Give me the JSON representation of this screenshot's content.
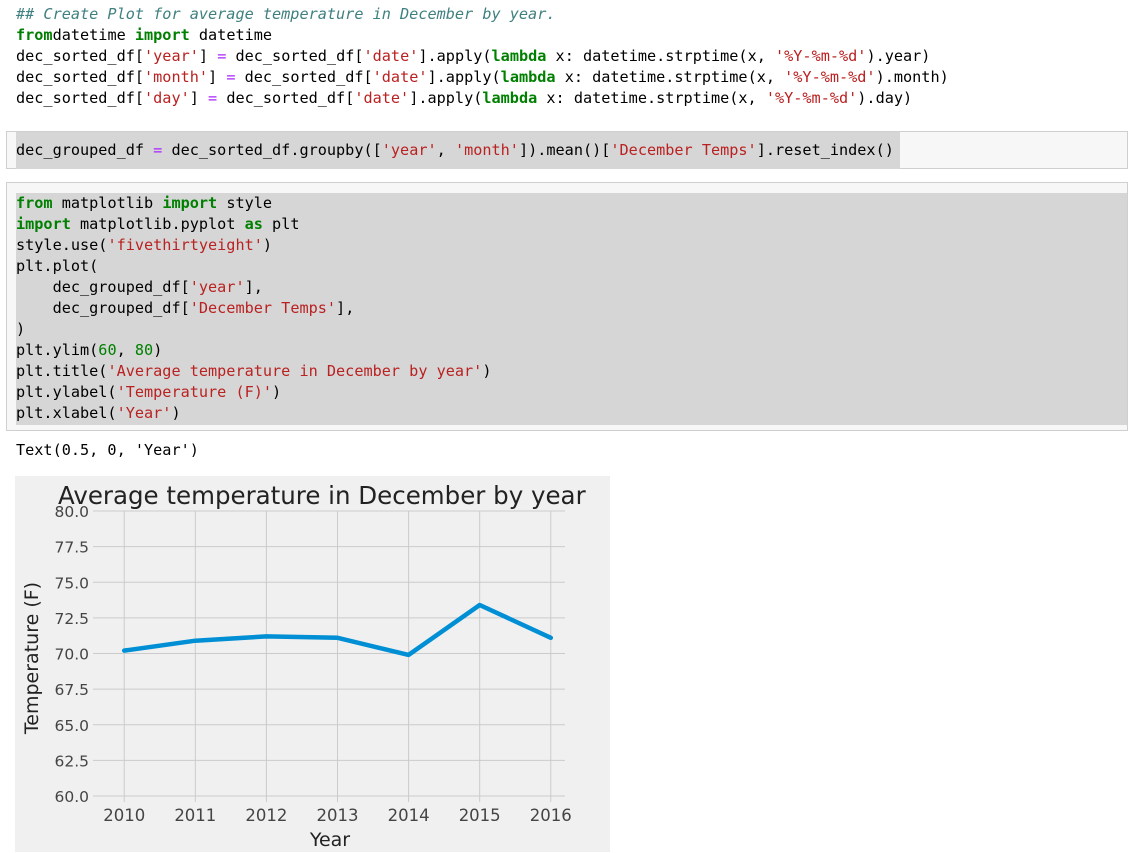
{
  "cell1": {
    "lines": [
      [
        [
          "cm",
          "## Create Plot for average temperature in December by year."
        ]
      ],
      [
        [
          "kw",
          "from"
        ],
        [
          "",
          "datetime "
        ],
        [
          "kw",
          "import"
        ],
        [
          "",
          " datetime"
        ]
      ],
      [
        [
          "",
          "dec_sorted_df["
        ],
        [
          "st",
          "'year'"
        ],
        [
          "",
          "] "
        ],
        [
          "op",
          "="
        ],
        [
          "",
          " dec_sorted_df["
        ],
        [
          "st",
          "'date'"
        ],
        [
          "",
          "].apply("
        ],
        [
          "kw",
          "lambda"
        ],
        [
          "",
          " x: datetime.strptime(x, "
        ],
        [
          "st",
          "'%Y-%m-%d'"
        ],
        [
          "",
          ").year)"
        ]
      ],
      [
        [
          "",
          "dec_sorted_df["
        ],
        [
          "st",
          "'month'"
        ],
        [
          "",
          "] "
        ],
        [
          "op",
          "="
        ],
        [
          "",
          " dec_sorted_df["
        ],
        [
          "st",
          "'date'"
        ],
        [
          "",
          "].apply("
        ],
        [
          "kw",
          "lambda"
        ],
        [
          "",
          " x: datetime.strptime(x, "
        ],
        [
          "st",
          "'%Y-%m-%d'"
        ],
        [
          "",
          ").month)"
        ]
      ],
      [
        [
          "",
          "dec_sorted_df["
        ],
        [
          "st",
          "'day'"
        ],
        [
          "",
          "] "
        ],
        [
          "op",
          "="
        ],
        [
          "",
          " dec_sorted_df["
        ],
        [
          "st",
          "'date'"
        ],
        [
          "",
          "].apply("
        ],
        [
          "kw",
          "lambda"
        ],
        [
          "",
          " x: datetime.strptime(x, "
        ],
        [
          "st",
          "'%Y-%m-%d'"
        ],
        [
          "",
          ").day)"
        ]
      ]
    ]
  },
  "cell2": {
    "lines": [
      [
        [
          "",
          "dec_grouped_df "
        ],
        [
          "op",
          "="
        ],
        [
          "",
          " dec_sorted_df.groupby(["
        ],
        [
          "st",
          "'year'"
        ],
        [
          "",
          ", "
        ],
        [
          "st",
          "'month'"
        ],
        [
          "",
          "]).mean()["
        ],
        [
          "st",
          "'December Temps'"
        ],
        [
          "",
          "].reset_index()"
        ]
      ]
    ]
  },
  "cell3": {
    "lines": [
      [
        [
          "kw",
          "from"
        ],
        [
          "",
          " matplotlib "
        ],
        [
          "kw",
          "import"
        ],
        [
          "",
          " style"
        ]
      ],
      [
        [
          "kw",
          "import"
        ],
        [
          "",
          " matplotlib.pyplot "
        ],
        [
          "kw",
          "as"
        ],
        [
          "",
          " plt"
        ]
      ],
      [
        [
          "",
          "style.use("
        ],
        [
          "st",
          "'fivethirtyeight'"
        ],
        [
          "",
          ")"
        ]
      ],
      [
        [
          "",
          "plt.plot("
        ]
      ],
      [
        [
          "",
          "    dec_grouped_df["
        ],
        [
          "st",
          "'year'"
        ],
        [
          "",
          "],"
        ]
      ],
      [
        [
          "",
          "    dec_grouped_df["
        ],
        [
          "st",
          "'December Temps'"
        ],
        [
          "",
          "],"
        ]
      ],
      [
        [
          "",
          ")"
        ]
      ],
      [
        [
          "",
          "plt.ylim("
        ],
        [
          "nm",
          "60"
        ],
        [
          "",
          ", "
        ],
        [
          "nm",
          "80"
        ],
        [
          "",
          ")"
        ]
      ],
      [
        [
          "",
          "plt.title("
        ],
        [
          "st",
          "'Average temperature in December by year'"
        ],
        [
          "",
          ")"
        ]
      ],
      [
        [
          "",
          "plt.ylabel("
        ],
        [
          "st",
          "'Temperature (F)'"
        ],
        [
          "",
          ")"
        ]
      ],
      [
        [
          "",
          "plt.xlabel("
        ],
        [
          "st",
          "'Year'"
        ],
        [
          "",
          ")"
        ]
      ]
    ]
  },
  "output_text": "Text(0.5, 0, 'Year')",
  "chart_data": {
    "type": "line",
    "title": "Average temperature in December by year",
    "xlabel": "Year",
    "ylabel": "Temperature (F)",
    "x": [
      2010,
      2011,
      2012,
      2013,
      2014,
      2015,
      2016
    ],
    "values": [
      70.2,
      70.9,
      71.2,
      71.1,
      69.9,
      73.4,
      71.1
    ],
    "ylim": [
      60,
      80
    ],
    "xlim": [
      2009.8,
      2016.2
    ],
    "yticks": [
      "60.0",
      "62.5",
      "65.0",
      "67.5",
      "70.0",
      "72.5",
      "75.0",
      "77.5",
      "80.0"
    ],
    "xticks": [
      "2010",
      "2011",
      "2012",
      "2013",
      "2014",
      "2015",
      "2016"
    ],
    "grid": true,
    "line_color": "#008fd5",
    "background_color": "#f0f0f0",
    "grid_color": "#cbcbcb"
  }
}
